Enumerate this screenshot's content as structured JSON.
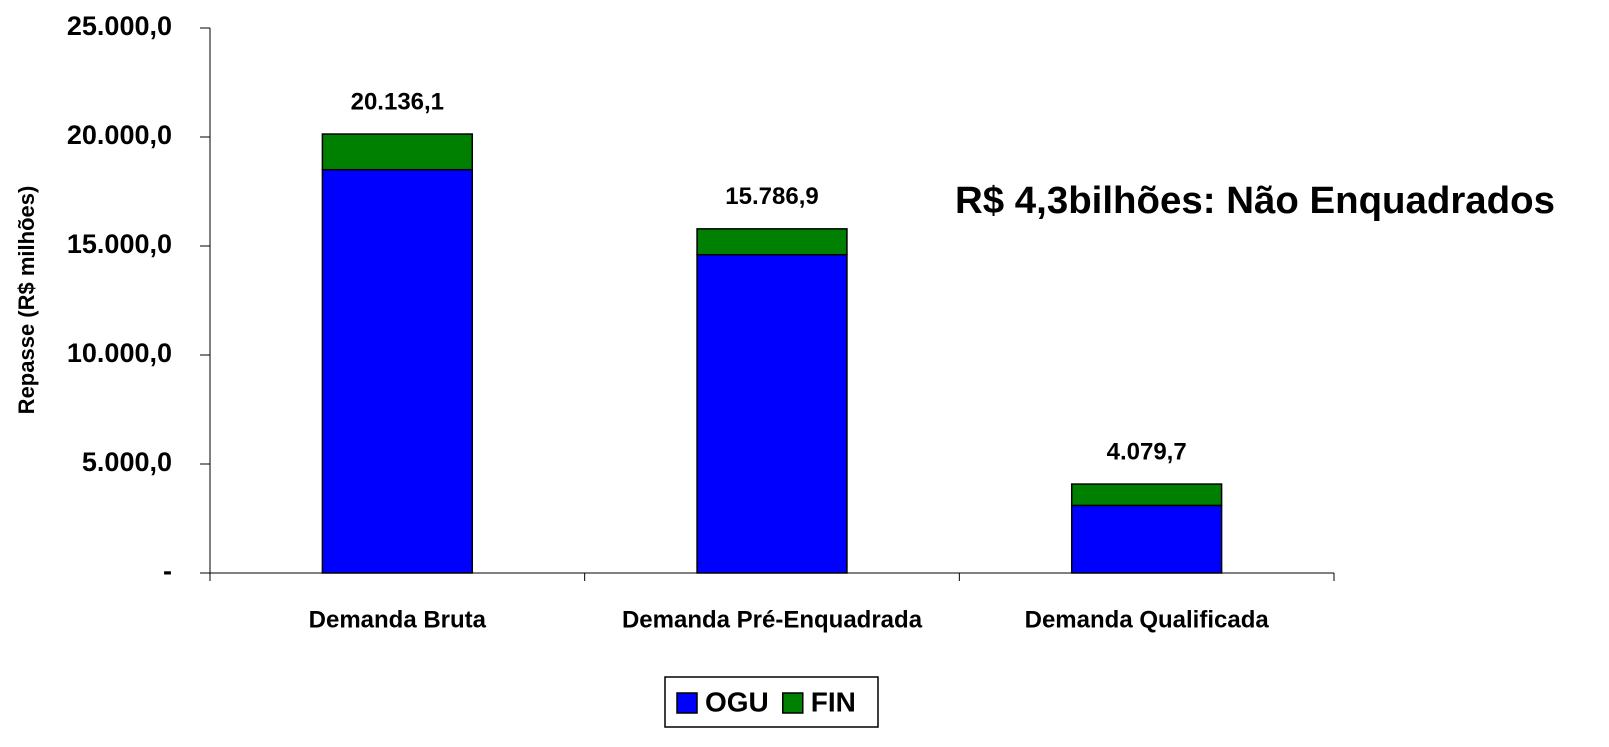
{
  "chart_data": {
    "type": "stacked_bar",
    "y_label": "Repasse (R$ milhões)",
    "annotation": "R$ 4,3bilhões: Não Enquadrados",
    "categories": [
      "Demanda Bruta",
      "Demanda Pré-Enquadrada",
      "Demanda Qualificada"
    ],
    "series": [
      {
        "name": "OGU",
        "color": "#0000ff",
        "values": [
          18500,
          14600,
          3100
        ]
      },
      {
        "name": "FIN",
        "color": "#008000",
        "values": [
          1636.1,
          1186.9,
          979.7
        ]
      }
    ],
    "totals": {
      "values": [
        20136.1,
        15786.9,
        4079.7
      ],
      "value_labels": [
        "20.136,1",
        "15.786,9",
        "4.079,7"
      ]
    },
    "ylim": [
      0,
      25000
    ],
    "yticks": [
      {
        "value": 0,
        "label": "-"
      },
      {
        "value": 5000,
        "label": "5.000,0"
      },
      {
        "value": 10000,
        "label": "10.000,0"
      },
      {
        "value": 15000,
        "label": "15.000,0"
      },
      {
        "value": 20000,
        "label": "20.000,0"
      },
      {
        "value": 25000,
        "label": "25.000,0"
      }
    ],
    "legend": "bottom"
  }
}
